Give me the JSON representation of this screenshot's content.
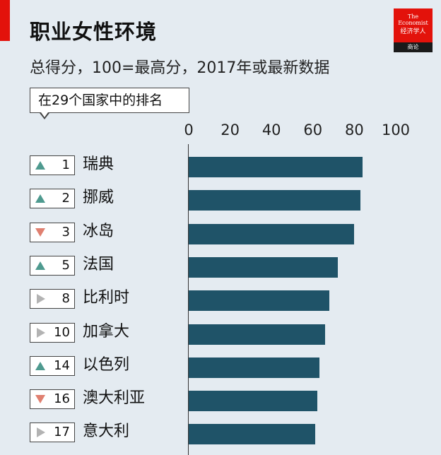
{
  "header": {
    "title": "职业女性环境",
    "subtitle": "总得分，100=最高分，2017年或最新数据",
    "rank_header": "在29个国家中的排名"
  },
  "logo": {
    "line1": "The",
    "line2": "Economist",
    "line3": "经济学人",
    "line4": "商论"
  },
  "colors": {
    "brand_red": "#e3120b",
    "bar": "#1f5368",
    "up": "#4e9a8f",
    "down": "#e08070",
    "same": "#b3b3b3",
    "background": "#e4ebf1"
  },
  "chart_data": {
    "type": "bar",
    "orientation": "horizontal",
    "title": "职业女性环境",
    "subtitle": "总得分，100=最高分，2017年或最新数据",
    "xlim": [
      0,
      100
    ],
    "ticks": [
      "0",
      "20",
      "40",
      "60",
      "80",
      "100"
    ],
    "categories": [
      "瑞典",
      "挪威",
      "冰岛",
      "法国",
      "比利时",
      "加拿大",
      "以色列",
      "澳大利亚",
      "意大利"
    ],
    "values": [
      84,
      83,
      80,
      72,
      68,
      66,
      63,
      62,
      61
    ],
    "ranks": [
      "1",
      "2",
      "3",
      "5",
      "8",
      "10",
      "14",
      "16",
      "17"
    ],
    "trend": [
      "up-arrow-icon",
      "up-arrow-icon",
      "down-arrow-icon",
      "up-arrow-icon",
      "right-arrow-icon",
      "right-arrow-icon",
      "up-arrow-icon",
      "down-arrow-icon",
      "right-arrow-icon"
    ],
    "grid": false
  }
}
